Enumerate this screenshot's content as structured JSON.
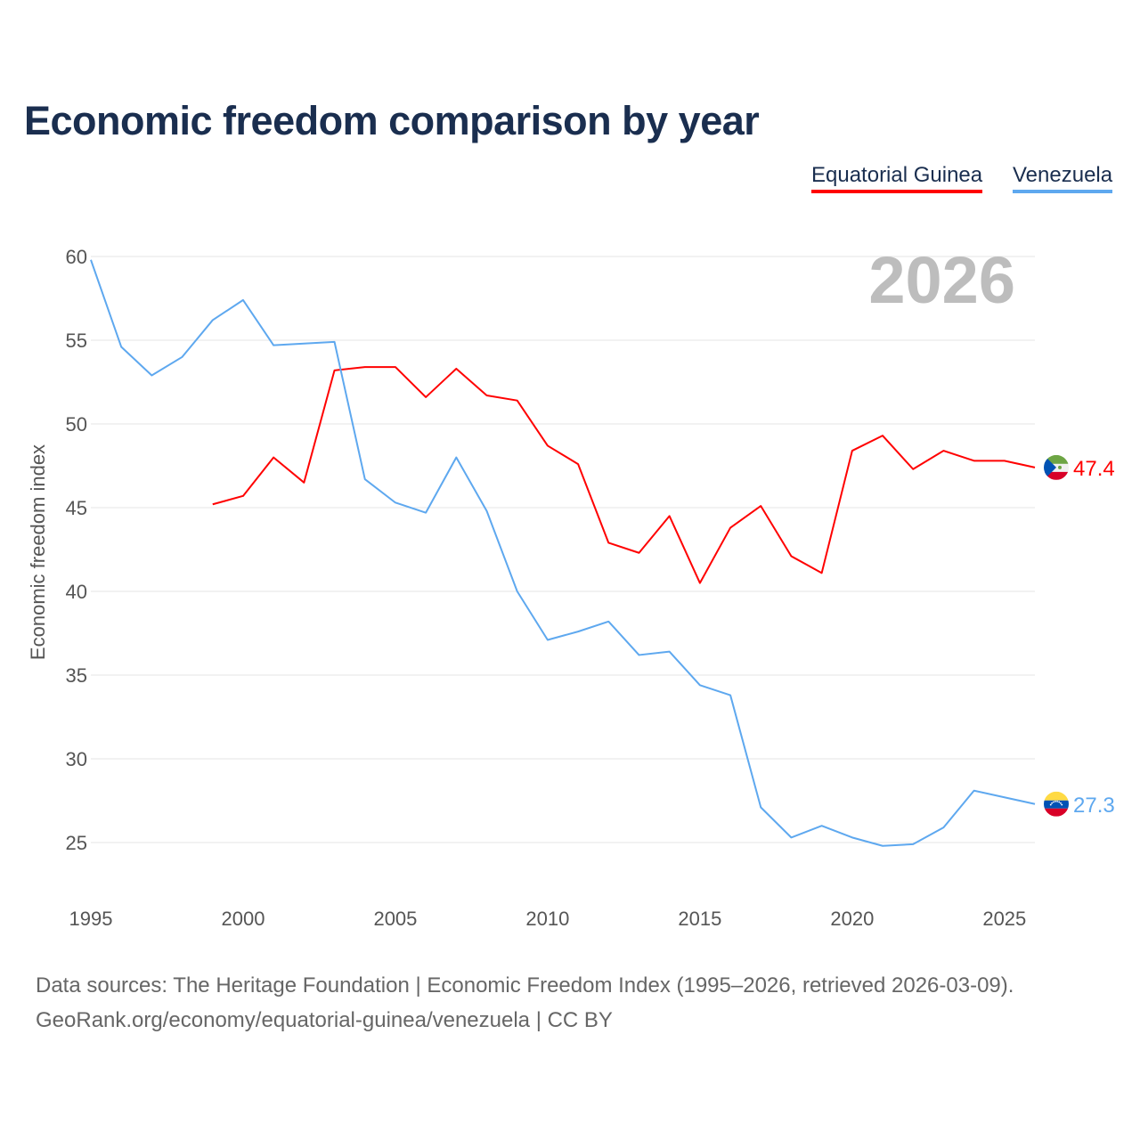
{
  "chart_data": {
    "type": "line",
    "title": "Economic freedom comparison by year",
    "xlabel": "",
    "ylabel": "Economic freedom index",
    "xlim": [
      1995,
      2026
    ],
    "ylim": [
      22,
      60
    ],
    "yticks": [
      25,
      30,
      35,
      40,
      45,
      50,
      55,
      60
    ],
    "xticks": [
      1995,
      2000,
      2005,
      2010,
      2015,
      2020,
      2025
    ],
    "grid": true,
    "legend_position": "top-right",
    "watermark_year": "2026",
    "series": [
      {
        "name": "Equatorial Guinea",
        "color": "#ff0000",
        "end_label": "47.4",
        "x": [
          1999,
          2000,
          2001,
          2002,
          2003,
          2004,
          2005,
          2006,
          2007,
          2008,
          2009,
          2010,
          2011,
          2012,
          2013,
          2014,
          2015,
          2016,
          2017,
          2018,
          2019,
          2020,
          2021,
          2022,
          2023,
          2024,
          2025,
          2026
        ],
        "values": [
          45.2,
          45.7,
          48.0,
          46.5,
          53.2,
          53.4,
          53.4,
          51.6,
          53.3,
          51.7,
          51.4,
          48.7,
          47.6,
          42.9,
          42.3,
          44.5,
          40.5,
          43.8,
          45.1,
          42.1,
          41.1,
          48.4,
          49.3,
          47.3,
          48.4,
          47.8,
          47.8,
          47.4
        ]
      },
      {
        "name": "Venezuela",
        "color": "#5ea8ef",
        "end_label": "27.3",
        "x": [
          1995,
          1996,
          1997,
          1998,
          1999,
          2000,
          2001,
          2002,
          2003,
          2004,
          2005,
          2006,
          2007,
          2008,
          2009,
          2010,
          2011,
          2012,
          2013,
          2014,
          2015,
          2016,
          2017,
          2018,
          2019,
          2020,
          2021,
          2022,
          2023,
          2024,
          2025,
          2026
        ],
        "values": [
          59.8,
          54.6,
          52.9,
          54.0,
          56.2,
          57.4,
          54.7,
          54.8,
          54.9,
          46.7,
          45.3,
          44.7,
          48.0,
          44.8,
          40.0,
          37.1,
          37.6,
          38.2,
          36.2,
          36.4,
          34.4,
          33.8,
          27.1,
          25.3,
          26.0,
          25.3,
          24.8,
          24.9,
          25.9,
          28.1,
          27.7,
          27.3
        ]
      }
    ]
  },
  "source": {
    "line1": "Data sources: The Heritage Foundation | Economic Freedom Index (1995–2026, retrieved 2026-03-09).",
    "line2": "GeoRank.org/economy/equatorial-guinea/venezuela | CC BY"
  }
}
